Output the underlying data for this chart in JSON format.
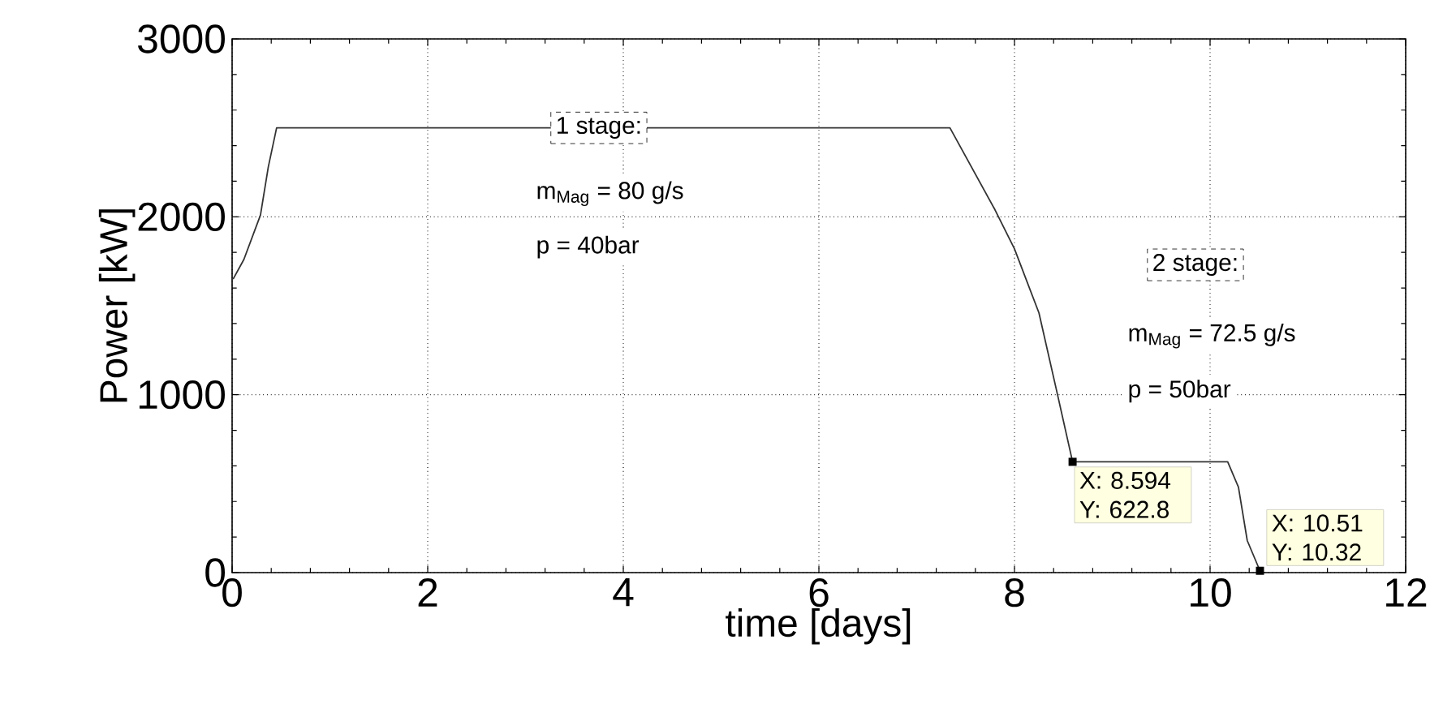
{
  "chart_data": {
    "type": "line",
    "xlabel": "time [days]",
    "ylabel": "Power [kW]",
    "xlim": [
      0,
      12
    ],
    "ylim": [
      0,
      3000
    ],
    "xticks": [
      0,
      2,
      4,
      6,
      8,
      10,
      12
    ],
    "yticks": [
      0,
      1000,
      2000,
      3000
    ],
    "grid": true,
    "marker": "none",
    "line_style": "solid",
    "series": [
      {
        "color": "#333333",
        "x": [
          0.01,
          0.12,
          0.29,
          0.37,
          0.455,
          7.34,
          7.8,
          8.0,
          8.25,
          8.44,
          8.594,
          10.18,
          10.29,
          10.38,
          10.51
        ],
        "values": [
          1650,
          1760,
          2010,
          2280,
          2500,
          2500,
          2040,
          1820,
          1460,
          1000,
          622.8,
          622.8,
          480,
          180,
          10.32
        ]
      }
    ],
    "annotations": [
      "1 stage:",
      "m$_{Mag}$ = 80 g/s",
      "p = 40bar",
      "2 stage:",
      "m$_{Mag}$ = 72.5 g/s",
      "p = 50bar",
      {
        "text": "X: 8.594 Y: 622.8",
        "x": 8.594,
        "y": 622.8
      },
      {
        "text": "X: 10.51 Y: 10.32",
        "x": 10.51,
        "y": 10.32
      }
    ]
  }
}
